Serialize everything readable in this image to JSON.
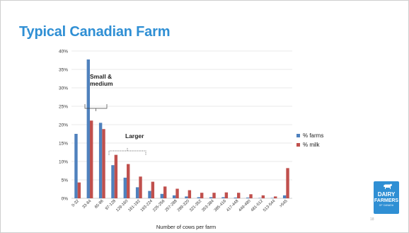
{
  "slide": {
    "title": "Typical Canadian Farm",
    "page_number": "18"
  },
  "logo": {
    "line1": "DAIRY",
    "line2": "FARMERS",
    "line3": "OF CANADA"
  },
  "annotations": {
    "small_medium": "Small & medium",
    "larger": "Larger"
  },
  "colors": {
    "title": "#2f8fd4",
    "farms": "#4f81bd",
    "milk": "#c0504d"
  },
  "chart_data": {
    "type": "bar",
    "xlabel": "Number of cows per farm",
    "ylabel": "",
    "ylim": [
      0,
      40
    ],
    "yticks": [
      "0%",
      "5%",
      "10%",
      "15%",
      "20%",
      "25%",
      "30%",
      "35%",
      "40%"
    ],
    "grid": true,
    "legend_position": "right",
    "categories": [
      "0-32",
      "33-64",
      "65-96",
      "97-128",
      "129-160",
      "161-192",
      "193-224",
      "225-256",
      "257-288",
      "289-320",
      "321-352",
      "353-384",
      "385-416",
      "417-448",
      "449-480",
      "481-512",
      "513-544",
      ">545"
    ],
    "series": [
      {
        "name": "% farms",
        "color": "#4f81bd",
        "values": [
          17.5,
          37.7,
          20.5,
          9.0,
          5.6,
          3.0,
          2.0,
          1.2,
          0.8,
          0.5,
          0.3,
          0.3,
          0.3,
          0.2,
          0.2,
          0.1,
          0.1,
          0.8
        ]
      },
      {
        "name": "% milk",
        "color": "#c0504d",
        "values": [
          4.3,
          21.1,
          18.8,
          11.8,
          9.3,
          5.9,
          4.5,
          3.2,
          2.6,
          2.2,
          1.5,
          1.5,
          1.6,
          1.5,
          1.1,
          0.8,
          0.5,
          8.2
        ]
      }
    ]
  }
}
